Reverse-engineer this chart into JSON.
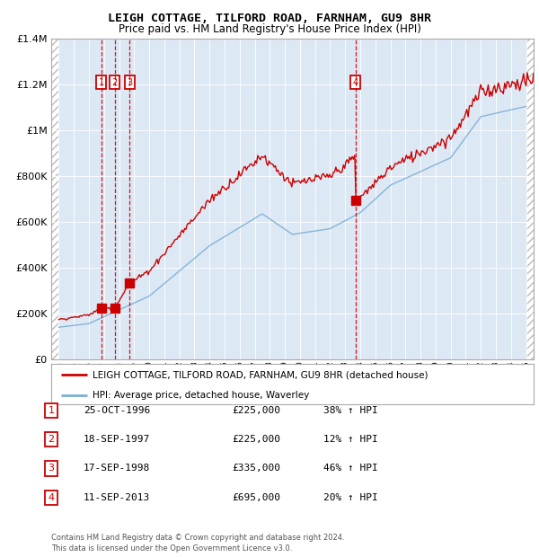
{
  "title": "LEIGH COTTAGE, TILFORD ROAD, FARNHAM, GU9 8HR",
  "subtitle": "Price paid vs. HM Land Registry's House Price Index (HPI)",
  "transactions": [
    {
      "num": 1,
      "date_label": "25-OCT-1996",
      "price": 225000,
      "pct": "38% ↑ HPI",
      "year": 1996.81
    },
    {
      "num": 2,
      "date_label": "18-SEP-1997",
      "price": 225000,
      "pct": "12% ↑ HPI",
      "year": 1997.71
    },
    {
      "num": 3,
      "date_label": "17-SEP-1998",
      "price": 335000,
      "pct": "46% ↑ HPI",
      "year": 1998.71
    },
    {
      "num": 4,
      "date_label": "11-SEP-2013",
      "price": 695000,
      "pct": "20% ↑ HPI",
      "year": 2013.69
    }
  ],
  "legend_property": "LEIGH COTTAGE, TILFORD ROAD, FARNHAM, GU9 8HR (detached house)",
  "legend_hpi": "HPI: Average price, detached house, Waverley",
  "footer": "Contains HM Land Registry data © Crown copyright and database right 2024.\nThis data is licensed under the Open Government Licence v3.0.",
  "property_color": "#cc0000",
  "hpi_color": "#7bafd4",
  "background_plot": "#dde8f5",
  "ylim": [
    0,
    1400000
  ],
  "xlim_start": 1993.5,
  "xlim_end": 2025.5,
  "yticks": [
    0,
    200000,
    400000,
    600000,
    800000,
    1000000,
    1200000,
    1400000
  ],
  "ytick_labels": [
    "£0",
    "£200K",
    "£400K",
    "£600K",
    "£800K",
    "£1M",
    "£1.2M",
    "£1.4M"
  ]
}
